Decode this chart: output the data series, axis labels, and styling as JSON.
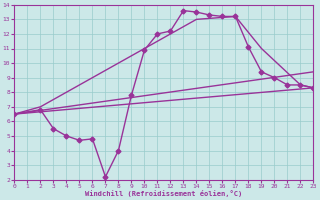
{
  "xlabel": "Windchill (Refroidissement éolien,°C)",
  "background_color": "#cce8e8",
  "grid_color": "#99cccc",
  "line_color": "#993399",
  "xlim": [
    0,
    23
  ],
  "ylim": [
    2,
    14
  ],
  "xticks": [
    0,
    1,
    2,
    3,
    4,
    5,
    6,
    7,
    8,
    9,
    10,
    11,
    12,
    13,
    14,
    15,
    16,
    17,
    18,
    19,
    20,
    21,
    22,
    23
  ],
  "yticks": [
    2,
    3,
    4,
    5,
    6,
    7,
    8,
    9,
    10,
    11,
    12,
    13,
    14
  ],
  "lines": [
    {
      "x": [
        0,
        2,
        3,
        4,
        5,
        6,
        7,
        8,
        9,
        10,
        11,
        12,
        13,
        14,
        15,
        16,
        17,
        18,
        19,
        20,
        21,
        22,
        23
      ],
      "y": [
        6.5,
        6.8,
        5.5,
        5.0,
        4.7,
        4.8,
        2.2,
        4.0,
        7.8,
        10.9,
        12.0,
        12.2,
        13.6,
        13.5,
        13.3,
        13.2,
        13.2,
        11.1,
        9.4,
        9.0,
        8.5,
        8.5,
        8.3
      ],
      "marker": "D",
      "markersize": 2.5,
      "linewidth": 1.0
    },
    {
      "x": [
        0,
        2,
        3,
        10,
        11,
        12,
        13,
        14,
        17,
        19,
        22,
        23
      ],
      "y": [
        6.5,
        7.0,
        7.5,
        11.0,
        11.5,
        12.0,
        12.5,
        13.0,
        13.2,
        11.0,
        8.5,
        8.3
      ],
      "marker": null,
      "markersize": 0,
      "linewidth": 1.0
    },
    {
      "x": [
        0,
        23
      ],
      "y": [
        6.5,
        9.4
      ],
      "marker": null,
      "markersize": 0,
      "linewidth": 1.0
    },
    {
      "x": [
        0,
        23
      ],
      "y": [
        6.5,
        8.3
      ],
      "marker": null,
      "markersize": 0,
      "linewidth": 1.0
    }
  ]
}
